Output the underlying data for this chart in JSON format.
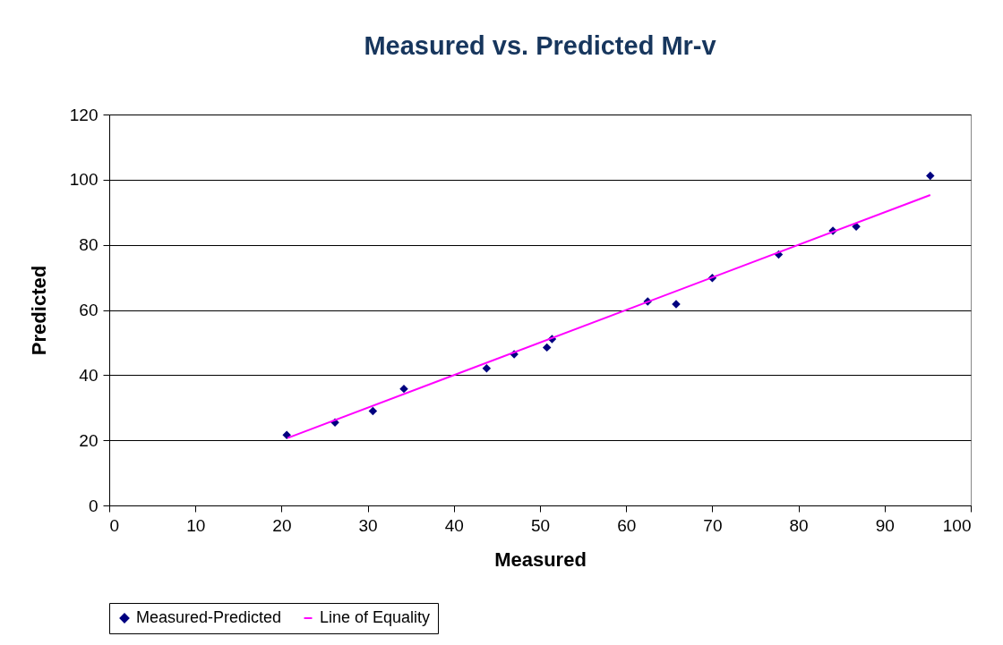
{
  "chart_data": {
    "type": "scatter",
    "title": "Measured vs. Predicted Mr-v",
    "xlabel": "Measured",
    "ylabel": "Predicted",
    "xlim": [
      0,
      100
    ],
    "xticks": [
      0,
      10,
      20,
      30,
      40,
      50,
      60,
      70,
      80,
      90,
      100
    ],
    "ylim": [
      0,
      120
    ],
    "yticks": [
      0,
      20,
      40,
      60,
      80,
      100,
      120
    ],
    "grid": "y",
    "legend": "bottom",
    "series": [
      {
        "name": "Measured-Predicted",
        "marker": "diamond",
        "color": "#000080",
        "x": [
          20.6,
          26.2,
          30.6,
          34.2,
          43.8,
          47.0,
          50.8,
          51.4,
          62.5,
          65.8,
          70.0,
          77.7,
          84.0,
          86.7,
          95.3
        ],
        "values": [
          21.6,
          25.5,
          29.0,
          35.8,
          42.1,
          46.4,
          48.5,
          51.1,
          62.6,
          61.8,
          69.8,
          77.0,
          84.3,
          85.6,
          101.2
        ]
      },
      {
        "name": "Line of Equality",
        "type": "line",
        "color": "#ff00ff",
        "x": [
          20.7,
          95.3
        ],
        "values": [
          20.7,
          95.3
        ]
      }
    ]
  }
}
